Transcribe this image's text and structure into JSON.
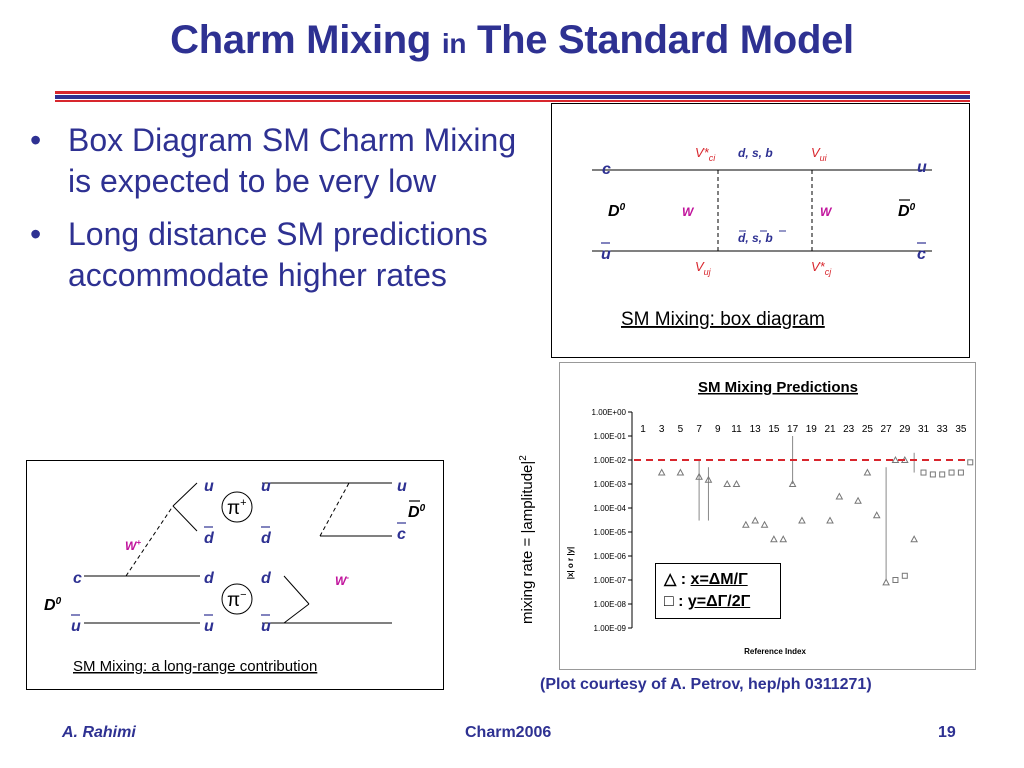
{
  "title": {
    "part1": "Charm Mixing",
    "part2": "in",
    "part3": "The Standard Model"
  },
  "bullets": [
    "Box Diagram SM Charm Mixing is expected to be very low",
    "Long distance SM predictions accommodate higher rates"
  ],
  "bullet_glyph": "•",
  "box_diagram": {
    "caption": "SM Mixing: box diagram",
    "c": "c",
    "u_top": "u",
    "u_bar": "u",
    "c_bar": "c",
    "d0": "D",
    "d0_sup": "0",
    "d0bar": "D",
    "d0bar_sup": "0",
    "v_ci": "V*",
    "v_ci_sub": "ci",
    "v_ui": "V",
    "v_ui_sub": "ui",
    "v_uj": "V",
    "v_uj_sub": "uj",
    "v_cj": "V*",
    "v_cj_sub": "cj",
    "quarks_top": "d, s, b",
    "quarks_bottom": "d, s, b",
    "w_left": "W",
    "w_right": "W"
  },
  "long_range": {
    "caption": "SM Mixing: a long-range contribution",
    "u1": "u",
    "u2": "u",
    "u3": "u",
    "dbar1": "d",
    "dbar2": "d",
    "cbar": "c",
    "c": "c",
    "d1": "d",
    "d2": "d",
    "ubar1": "u",
    "ubar2": "u",
    "ubar3": "u",
    "pi_plus": "π",
    "pi_plus_sup": "+",
    "pi_minus": "π",
    "pi_minus_sup": "−",
    "w_plus": "W",
    "w_plus_sup": "+",
    "w_minus": "W",
    "w_minus_sup": "-",
    "d0": "D",
    "d0_sup": "0",
    "d0bar": "D",
    "d0bar_sup": "0"
  },
  "predictions_plot": {
    "side_label": "mixing rate = |amplitude|",
    "side_label_sup": "2",
    "legend": {
      "x_symbol": "△",
      "x_text": "x=ΔM/Γ",
      "y_symbol": "□",
      "y_text": "y=ΔΓ/2Γ"
    },
    "credit": "(Plot courtesy of A. Petrov, hep/ph 0311271)"
  },
  "chart_data": {
    "type": "scatter",
    "title": "SM Mixing Predictions",
    "xlabel": "Reference Index",
    "ylabel": "|x| o r |y|",
    "y_scale": "log",
    "ylim": [
      1e-09,
      1
    ],
    "x_ticks": [
      1,
      3,
      5,
      7,
      9,
      11,
      13,
      15,
      17,
      19,
      21,
      23,
      25,
      27,
      29,
      31,
      33,
      35
    ],
    "y_tick_labels": [
      "1.00E+00",
      "1.00E-01",
      "1.00E-02",
      "1.00E-03",
      "1.00E-04",
      "1.00E-05",
      "1.00E-06",
      "1.00E-07",
      "1.00E-08",
      "1.00E-09"
    ],
    "threshold_line": 0.01,
    "series": [
      {
        "name": "x=ΔM/Γ",
        "marker": "triangle",
        "points": [
          [
            3,
            0.003
          ],
          [
            5,
            0.003
          ],
          [
            7,
            0.002
          ],
          [
            8,
            0.0015
          ],
          [
            10,
            0.001
          ],
          [
            11,
            0.001
          ],
          [
            12,
            2e-05
          ],
          [
            13,
            3e-05
          ],
          [
            14,
            2e-05
          ],
          [
            15,
            5e-06
          ],
          [
            16,
            5e-06
          ],
          [
            17,
            0.001
          ],
          [
            18,
            3e-05
          ],
          [
            21,
            3e-05
          ],
          [
            22,
            0.0003
          ],
          [
            24,
            0.0002
          ],
          [
            25,
            0.003
          ],
          [
            26,
            5e-05
          ],
          [
            27,
            8e-08
          ],
          [
            28,
            0.01
          ],
          [
            29,
            0.01
          ],
          [
            30,
            5e-06
          ]
        ],
        "ranges": [
          [
            7,
            3e-05,
            0.01
          ],
          [
            8,
            3e-05,
            0.005
          ],
          [
            17,
            0.001,
            0.1
          ],
          [
            27,
            1e-07,
            0.005
          ]
        ]
      },
      {
        "name": "y=ΔΓ/2Γ",
        "marker": "square",
        "points": [
          [
            28,
            1e-07
          ],
          [
            29,
            1.5e-07
          ],
          [
            31,
            0.003
          ],
          [
            32,
            0.0025
          ],
          [
            33,
            0.0025
          ],
          [
            34,
            0.003
          ],
          [
            35,
            0.003
          ],
          [
            36,
            0.008
          ],
          [
            37,
            0.01
          ]
        ],
        "ranges": [
          [
            30,
            0.003,
            0.02
          ]
        ]
      }
    ]
  },
  "footer": {
    "author": "A. Rahimi",
    "conference": "Charm2006",
    "page": "19"
  }
}
